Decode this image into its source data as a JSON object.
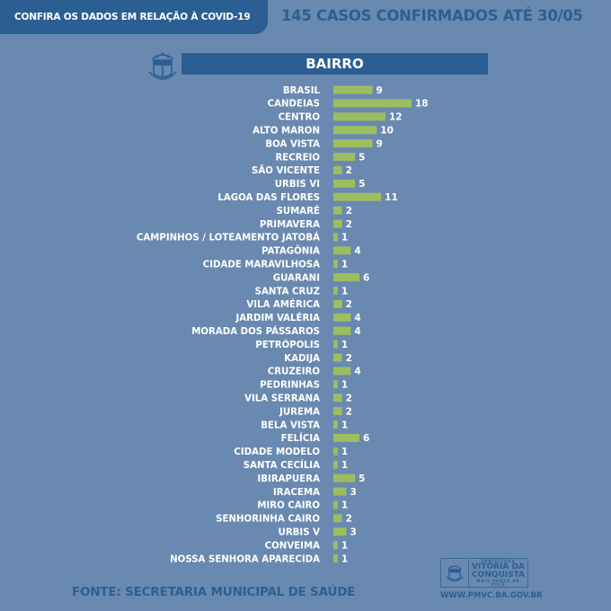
{
  "header": {
    "tab_label": "CONFIRA OS DADOS EM RELAÇÃO À COVID-19",
    "headline": "145 CASOS CONFIRMADOS ATÉ 30/05",
    "crest_icon": "city-crest-icon"
  },
  "colors": {
    "background": "#6a89b0",
    "header_blue": "#2b5f93",
    "bar_green": "#9dbd5f",
    "text_white": "#ffffff"
  },
  "chart_data": {
    "type": "bar",
    "orientation": "horizontal",
    "title": "BAIRRO",
    "xlabel": "",
    "ylabel": "",
    "xlim": [
      0,
      18
    ],
    "grid": false,
    "data_labels": true,
    "categories": [
      "BRASIL",
      "CANDEIAS",
      "CENTRO",
      "ALTO MARON",
      "BOA VISTA",
      "RECREIO",
      "SÃO VICENTE",
      "URBIS VI",
      "LAGOA DAS FLORES",
      "SUMARÉ",
      "PRIMAVERA",
      "CAMPINHOS / LOTEAMENTO JATOBÁ",
      "PATAGÔNIA",
      "CIDADE MARAVILHOSA",
      "GUARANI",
      "SANTA CRUZ",
      "VILA AMÉRICA",
      "JARDIM VALÉRIA",
      "MORADA DOS PÁSSAROS",
      "PETRÓPOLIS",
      "KADIJA",
      "CRUZEIRO",
      "PEDRINHAS",
      "VILA SERRANA",
      "JUREMA",
      "BELA VISTA",
      "FELÍCIA",
      "CIDADE MODELO",
      "SANTA CECÍLIA",
      "IBIRAPUERA",
      "IRACEMA",
      "MIRO CAIRO",
      "SENHORINHA CAIRO",
      "URBIS V",
      "CONVEIMA",
      "NOSSA SENHORA APARECIDA"
    ],
    "values": [
      9,
      18,
      12,
      10,
      9,
      5,
      2,
      5,
      11,
      2,
      2,
      1,
      4,
      1,
      6,
      1,
      2,
      4,
      4,
      1,
      2,
      4,
      1,
      2,
      2,
      1,
      6,
      1,
      1,
      5,
      3,
      1,
      2,
      3,
      1,
      1
    ]
  },
  "footer": {
    "source": "FONTE: SECRETARIA MUNICIPAL DE SAÚDE",
    "logo_prefix": "PREFEITURA",
    "logo_line1": "VITÓRIA DA",
    "logo_line2": "CONQUISTA",
    "logo_tagline": "MAIS PERTO DE VOCÊ",
    "url": "WWW.PMVC.BA.GOV.BR"
  }
}
